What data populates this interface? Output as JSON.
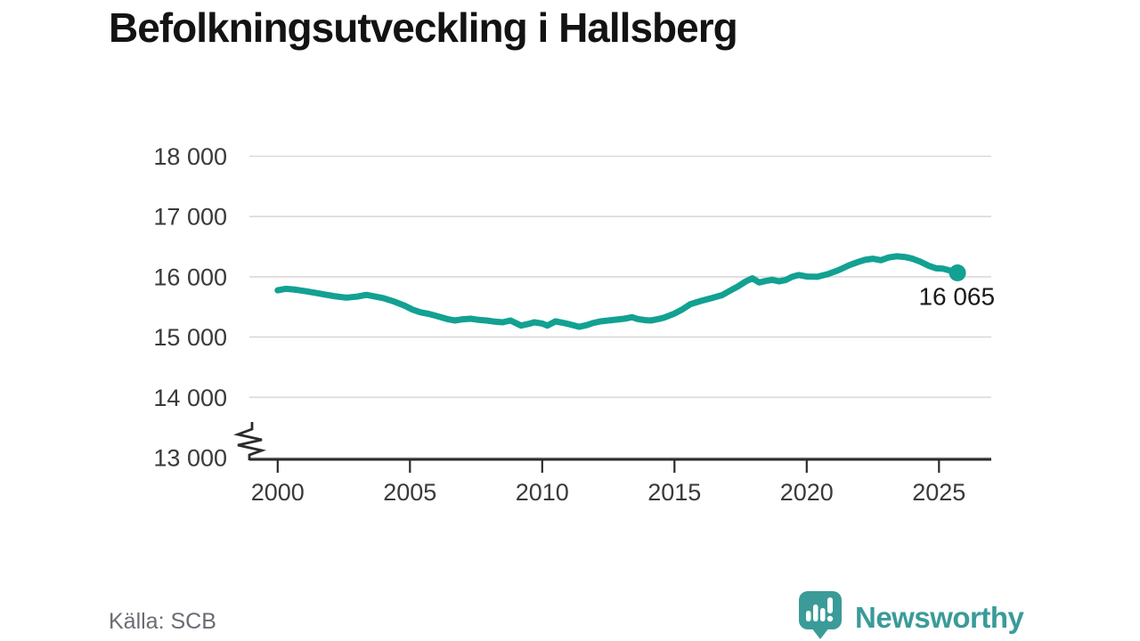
{
  "title": "Befolkningsutveckling i Hallsberg",
  "footer": {
    "source": "Källa: SCB",
    "brand_name": "Newsworthy",
    "brand_color": "#3a9b99",
    "brand_icon": "newsworthy-speech-bubble-barchart-icon"
  },
  "chart_data": {
    "type": "line",
    "title": "Befolkningsutveckling i Hallsberg",
    "xlabel": "",
    "ylabel": "",
    "x_ticks": [
      2000,
      2005,
      2010,
      2015,
      2020,
      2025
    ],
    "y_ticks": [
      13000,
      14000,
      15000,
      16000,
      17000,
      18000
    ],
    "y_tick_labels": [
      "13 000",
      "14 000",
      "15 000",
      "16 000",
      "17 000",
      "18 000"
    ],
    "ylim": [
      13000,
      18000
    ],
    "xlim": [
      1998.9,
      2027.0
    ],
    "grid": true,
    "axis_break_at_bottom": true,
    "legend": "none",
    "end_annotation": {
      "label": "16 065",
      "value": 16065,
      "year": 2025.7
    },
    "colors": {
      "line": "#12a192",
      "grid": "#d9d9d9",
      "axis": "#2b2b2b",
      "tick_label": "#3a3a3a",
      "annotation": "#1a1a1a"
    },
    "series": [
      {
        "points": [
          [
            2000.0,
            15775
          ],
          [
            2000.3,
            15800
          ],
          [
            2000.6,
            15790
          ],
          [
            2001.0,
            15765
          ],
          [
            2001.4,
            15735
          ],
          [
            2001.8,
            15705
          ],
          [
            2002.2,
            15675
          ],
          [
            2002.6,
            15655
          ],
          [
            2003.0,
            15670
          ],
          [
            2003.35,
            15700
          ],
          [
            2003.7,
            15670
          ],
          [
            2004.0,
            15645
          ],
          [
            2004.4,
            15590
          ],
          [
            2004.8,
            15520
          ],
          [
            2005.1,
            15455
          ],
          [
            2005.4,
            15410
          ],
          [
            2005.7,
            15385
          ],
          [
            2006.0,
            15350
          ],
          [
            2006.4,
            15300
          ],
          [
            2006.7,
            15275
          ],
          [
            2007.0,
            15295
          ],
          [
            2007.3,
            15305
          ],
          [
            2007.6,
            15285
          ],
          [
            2007.9,
            15275
          ],
          [
            2008.2,
            15255
          ],
          [
            2008.5,
            15245
          ],
          [
            2008.8,
            15275
          ],
          [
            2009.2,
            15190
          ],
          [
            2009.5,
            15220
          ],
          [
            2009.7,
            15245
          ],
          [
            2010.0,
            15225
          ],
          [
            2010.2,
            15190
          ],
          [
            2010.5,
            15260
          ],
          [
            2010.8,
            15235
          ],
          [
            2011.0,
            15215
          ],
          [
            2011.4,
            15170
          ],
          [
            2011.7,
            15200
          ],
          [
            2011.9,
            15230
          ],
          [
            2012.2,
            15260
          ],
          [
            2012.5,
            15275
          ],
          [
            2012.8,
            15290
          ],
          [
            2013.1,
            15305
          ],
          [
            2013.4,
            15330
          ],
          [
            2013.6,
            15300
          ],
          [
            2013.9,
            15280
          ],
          [
            2014.1,
            15275
          ],
          [
            2014.4,
            15300
          ],
          [
            2014.6,
            15320
          ],
          [
            2015.0,
            15390
          ],
          [
            2015.3,
            15460
          ],
          [
            2015.6,
            15545
          ],
          [
            2016.0,
            15600
          ],
          [
            2016.4,
            15645
          ],
          [
            2016.8,
            15695
          ],
          [
            2017.1,
            15770
          ],
          [
            2017.4,
            15840
          ],
          [
            2017.7,
            15925
          ],
          [
            2017.95,
            15975
          ],
          [
            2018.2,
            15905
          ],
          [
            2018.45,
            15930
          ],
          [
            2018.7,
            15950
          ],
          [
            2018.95,
            15925
          ],
          [
            2019.2,
            15945
          ],
          [
            2019.45,
            16000
          ],
          [
            2019.7,
            16030
          ],
          [
            2020.0,
            16005
          ],
          [
            2020.4,
            16000
          ],
          [
            2020.8,
            16045
          ],
          [
            2021.2,
            16110
          ],
          [
            2021.6,
            16190
          ],
          [
            2021.9,
            16240
          ],
          [
            2022.2,
            16280
          ],
          [
            2022.5,
            16300
          ],
          [
            2022.8,
            16275
          ],
          [
            2023.1,
            16320
          ],
          [
            2023.4,
            16340
          ],
          [
            2023.7,
            16330
          ],
          [
            2024.0,
            16300
          ],
          [
            2024.3,
            16250
          ],
          [
            2024.6,
            16185
          ],
          [
            2024.9,
            16140
          ],
          [
            2025.15,
            16135
          ],
          [
            2025.4,
            16105
          ],
          [
            2025.7,
            16065
          ]
        ]
      }
    ]
  }
}
